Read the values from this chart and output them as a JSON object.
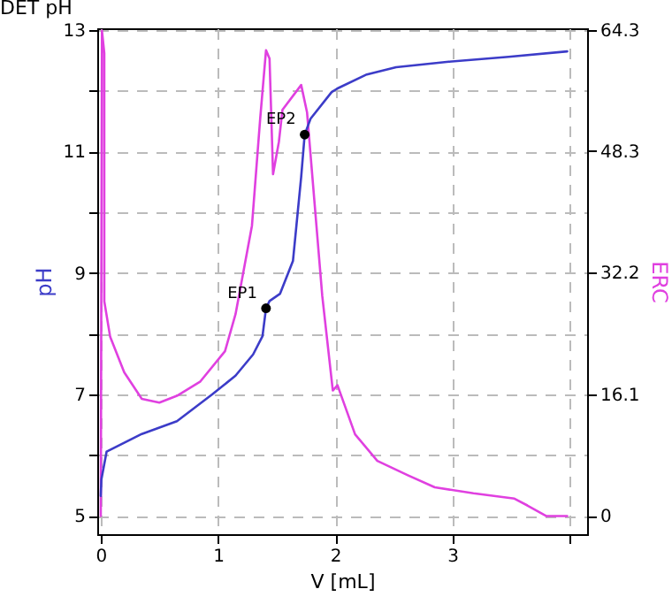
{
  "chart_data": {
    "type": "line",
    "title": "DET pH",
    "xlabel": "V [mL]",
    "ylabel": "pH",
    "y2label": "ERC",
    "xlim": [
      -0.03,
      4.15
    ],
    "xticks": [
      0,
      1,
      2,
      3,
      {
        "value": 4,
        "label": null
      }
    ],
    "ylim": [
      4.7,
      13.03
    ],
    "yticks": [
      5,
      {
        "value": 6,
        "label": null
      },
      7,
      {
        "value": 8,
        "label": null
      },
      9,
      {
        "value": 10,
        "label": null
      },
      11,
      {
        "value": 12,
        "label": null
      },
      13
    ],
    "y2lim": [
      -2.4,
      64.5
    ],
    "y2ticks": [
      0,
      16.1,
      32.2,
      48.3,
      64.3
    ],
    "grid": true,
    "marker": "none",
    "line_style": "solid",
    "series": [
      {
        "color": "#3c3cc8",
        "x": [
          0,
          0.005,
          0.05,
          0.35,
          0.65,
          0.95,
          1.15,
          1.3,
          1.38,
          1.41,
          1.44,
          1.53,
          1.64,
          1.71,
          1.74,
          1.79,
          1.97,
          2.02,
          2.27,
          2.52,
          2.97,
          3.48,
          3.98
        ],
        "values": [
          5.33,
          5.6,
          6.06,
          6.35,
          6.56,
          7.0,
          7.31,
          7.66,
          7.96,
          8.42,
          8.54,
          8.66,
          9.2,
          10.58,
          11.28,
          11.54,
          11.98,
          12.04,
          12.27,
          12.39,
          12.48,
          12.56,
          12.65
        ]
      },
      {
        "axis": "y2",
        "color": "#e040e0",
        "x": [
          0,
          0.01,
          0.03,
          0.03,
          0.08,
          0.2,
          0.35,
          0.5,
          0.65,
          0.85,
          1.06,
          1.15,
          1.29,
          1.36,
          1.41,
          1.44,
          1.47,
          1.52,
          1.55,
          1.71,
          1.76,
          1.89,
          1.98,
          2.02,
          2.17,
          2.36,
          2.62,
          2.85,
          3.18,
          3.53,
          3.64,
          3.8,
          3.98
        ],
        "values": [
          0,
          64.2,
          61.2,
          28.4,
          23.7,
          19.0,
          15.5,
          15.0,
          15.9,
          17.8,
          21.8,
          26.7,
          38.4,
          52.5,
          61.6,
          60.5,
          45.2,
          49.5,
          53.7,
          57.0,
          53.4,
          29.1,
          16.6,
          17.3,
          10.8,
          7.3,
          5.4,
          3.8,
          3.0,
          2.3,
          1.4,
          0,
          0
        ]
      },
      {
        "type": "scatter",
        "color": "#000000",
        "marker": "circle",
        "x": [
          1.41,
          1.74
        ],
        "values": [
          8.42,
          11.28
        ]
      }
    ],
    "annotations": [
      {
        "text": "EP1",
        "x": 1.41,
        "y": 8.42
      },
      {
        "text": "EP2",
        "x": 1.74,
        "y": 11.28
      }
    ]
  }
}
